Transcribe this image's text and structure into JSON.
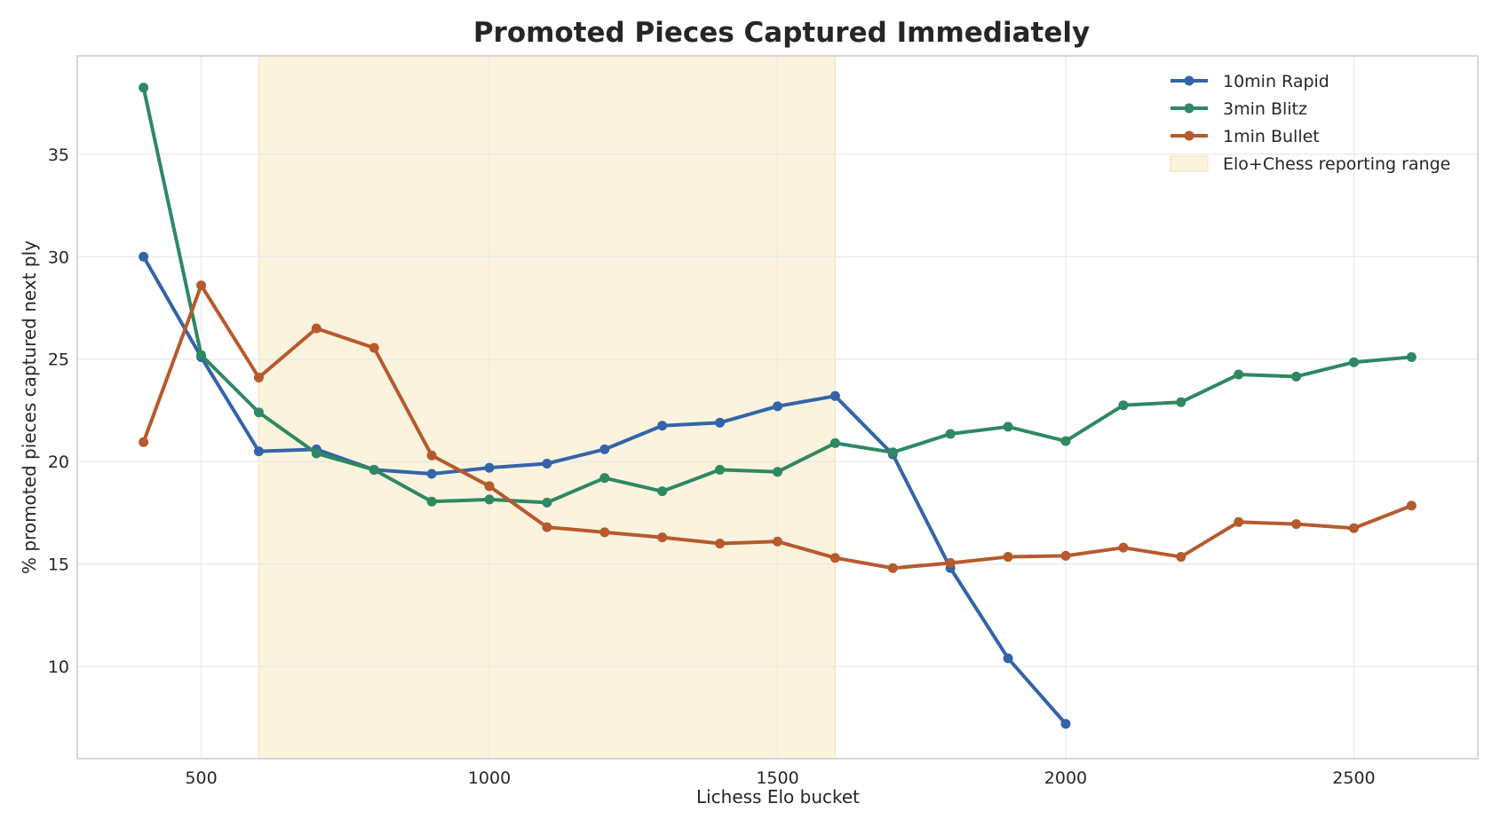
{
  "chart_data": {
    "type": "line",
    "title": "Promoted Pieces Captured Immediately",
    "xlabel": "Lichess Elo bucket",
    "ylabel": "% promoted pieces captured next ply",
    "xlim": [
      285,
      2715
    ],
    "ylim": [
      5.5,
      39.8
    ],
    "xticks": [
      500,
      1000,
      1500,
      2000,
      2500
    ],
    "yticks": [
      10,
      15,
      20,
      25,
      30,
      35
    ],
    "grid": true,
    "legend_position": "top-right",
    "highlight_band": {
      "label": "Elo+Chess reporting range",
      "x_range": [
        600,
        1600
      ],
      "color": "#fbf3dd"
    },
    "series": [
      {
        "name": "10min Rapid",
        "color": "#3464a8",
        "x": [
          400,
          500,
          600,
          700,
          800,
          900,
          1000,
          1100,
          1200,
          1300,
          1400,
          1500,
          1600,
          1700,
          1800,
          1900,
          2000
        ],
        "values": [
          30.0,
          25.1,
          20.5,
          20.6,
          19.6,
          19.4,
          19.7,
          19.9,
          20.6,
          21.75,
          21.9,
          22.7,
          23.2,
          20.35,
          14.8,
          10.4,
          7.2
        ]
      },
      {
        "name": "3min Blitz",
        "color": "#2e8862",
        "x": [
          400,
          500,
          600,
          700,
          800,
          900,
          1000,
          1100,
          1200,
          1300,
          1400,
          1500,
          1600,
          1700,
          1800,
          1900,
          2000,
          2100,
          2200,
          2300,
          2400,
          2500,
          2600
        ],
        "values": [
          38.25,
          25.2,
          22.4,
          20.4,
          19.6,
          18.05,
          18.15,
          18.0,
          19.2,
          18.55,
          19.6,
          19.5,
          20.9,
          20.45,
          21.35,
          21.7,
          21.0,
          22.75,
          22.9,
          24.25,
          24.15,
          24.85,
          25.1
        ]
      },
      {
        "name": "1min Bullet",
        "color": "#b65a2e",
        "x": [
          400,
          500,
          600,
          700,
          800,
          900,
          1000,
          1100,
          1200,
          1300,
          1400,
          1500,
          1600,
          1700,
          1800,
          1900,
          2000,
          2100,
          2200,
          2300,
          2400,
          2500,
          2600
        ],
        "values": [
          20.95,
          28.6,
          24.1,
          26.5,
          25.55,
          20.3,
          18.8,
          16.8,
          16.55,
          16.3,
          16.0,
          16.1,
          15.3,
          14.8,
          15.05,
          15.35,
          15.4,
          15.8,
          15.35,
          17.05,
          16.95,
          16.75,
          17.85
        ]
      }
    ]
  }
}
